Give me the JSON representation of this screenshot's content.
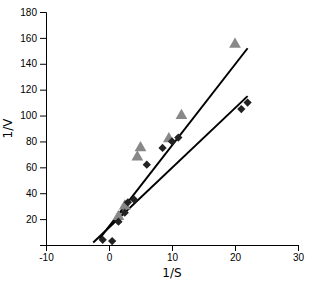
{
  "chart_data": {
    "type": "scatter",
    "xlabel": "1/S",
    "ylabel": "1/V",
    "xlim": [
      -10,
      30
    ],
    "ylim": [
      0,
      180
    ],
    "xticks": [
      -10,
      0,
      10,
      20,
      30
    ],
    "yticks": [
      20,
      40,
      60,
      80,
      100,
      120,
      140,
      160,
      180
    ],
    "grid": false,
    "series": [
      {
        "type": "scatter",
        "marker": "triangle",
        "color": "#888888",
        "x": [
          1.5,
          2.5,
          4.5,
          5.0,
          9.5,
          11.5,
          20.0
        ],
        "values": [
          22.0,
          30.0,
          68.0,
          75.0,
          82.0,
          100.0,
          155.0
        ]
      },
      {
        "type": "scatter",
        "marker": "diamond",
        "color": "#222222",
        "x": [
          -1.0,
          0.5,
          1.5,
          2.5,
          3.0,
          4.0,
          6.0,
          8.5,
          10.0,
          11.0,
          21.0,
          22.0
        ],
        "values": [
          4.0,
          3.0,
          18.0,
          25.0,
          33.0,
          35.0,
          62.0,
          75.0,
          80.0,
          83.0,
          105.0,
          110.0
        ]
      },
      {
        "type": "line",
        "line_style": "solid",
        "color": "#000000",
        "x": [
          -1.5,
          22
        ],
        "values": [
          5.0,
          152.0
        ]
      },
      {
        "type": "line",
        "line_style": "solid",
        "color": "#000000",
        "x": [
          -2.5,
          22
        ],
        "values": [
          2.0,
          115.0
        ]
      }
    ]
  }
}
